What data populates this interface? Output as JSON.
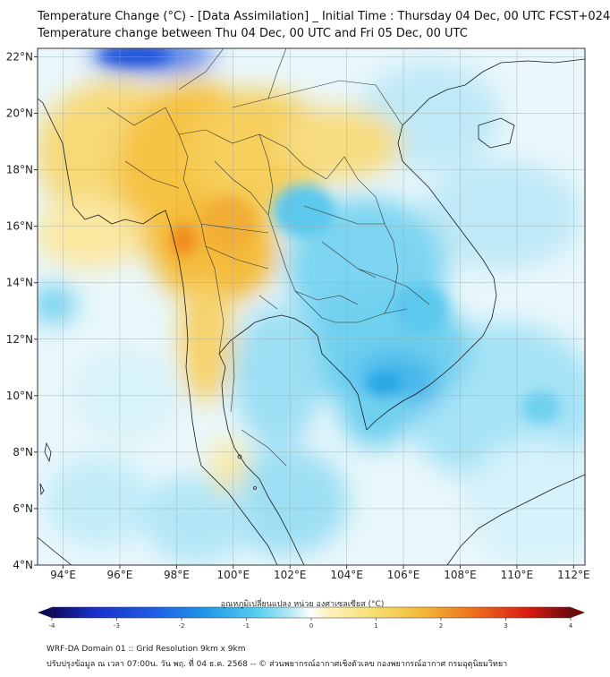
{
  "header": {
    "title_line1": "Temperature Change (°C) - [Data Assimilation] _ Initial Time : Thursday 04 Dec, 00 UTC FCST+024",
    "title_line2": "Temperature change between Thu 04 Dec, 00 UTC and Fri 05 Dec, 00 UTC"
  },
  "map": {
    "lat_labels": [
      "22°N",
      "20°N",
      "18°N",
      "16°N",
      "14°N",
      "12°N",
      "10°N",
      "8°N",
      "6°N",
      "4°N"
    ],
    "lon_labels": [
      "94°E",
      "96°E",
      "98°E",
      "100°E",
      "102°E",
      "104°E",
      "106°E",
      "108°E",
      "110°E",
      "112°E"
    ],
    "lat_range": [
      4,
      22.3
    ],
    "lon_range": [
      93.1,
      112.4
    ]
  },
  "colorbar": {
    "label": "อุณหภูมิเปลี่ยนแปลง หน่วย องศาเซลเซียส (°C)",
    "ticks": [
      "-4",
      "-3",
      "-2",
      "-1",
      "0",
      "1",
      "2",
      "3",
      "4"
    ],
    "min": -4,
    "max": 4
  },
  "footer": {
    "line1": "WRF-DA Domain 01 :: Grid Resolution 9km x 9km",
    "line2": "ปรับปรุงข้อมูล ณ เวลา 07:00น. วัน พฤ. ที่ 04 ธ.ค. 2568 -- © ส่วนพยากรณ์อากาศเชิงตัวเลข กองพยากรณ์อากาศ กรมอุตุนิยมวิทยา"
  },
  "colors": {
    "warm_peak": "#f08a1e",
    "warm": "#f5c242",
    "warm_light": "#fbe9a0",
    "cool_light": "#c8eef8",
    "cool": "#6fd0ef",
    "cool_deep": "#26a6e6",
    "cold_spot": "#1f4fd8",
    "coast": "#1a1a1a"
  }
}
